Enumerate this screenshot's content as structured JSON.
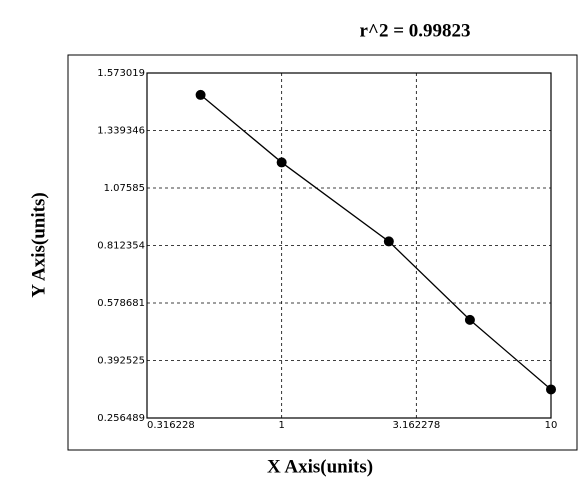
{
  "chart_data": {
    "type": "scatter",
    "title": "r^2 = 0.99823",
    "x_label": "X Axis(units)",
    "y_label": "Y Axis(units)",
    "x": [
      0.5,
      1,
      2.5,
      5,
      10
    ],
    "values": [
      1.484,
      1.193,
      0.831,
      0.524,
      0.324
    ],
    "color": "#000000",
    "x_log": true,
    "xlim": [
      0.316228,
      10
    ],
    "xticks": [
      0.316228,
      1,
      3.162278,
      10
    ],
    "ylim": [
      0.256489,
      1.573019
    ],
    "yticks": [
      0.256489,
      0.392525,
      0.578681,
      0.812354,
      1.07585,
      1.339346,
      1.573019
    ],
    "grid": true
  }
}
